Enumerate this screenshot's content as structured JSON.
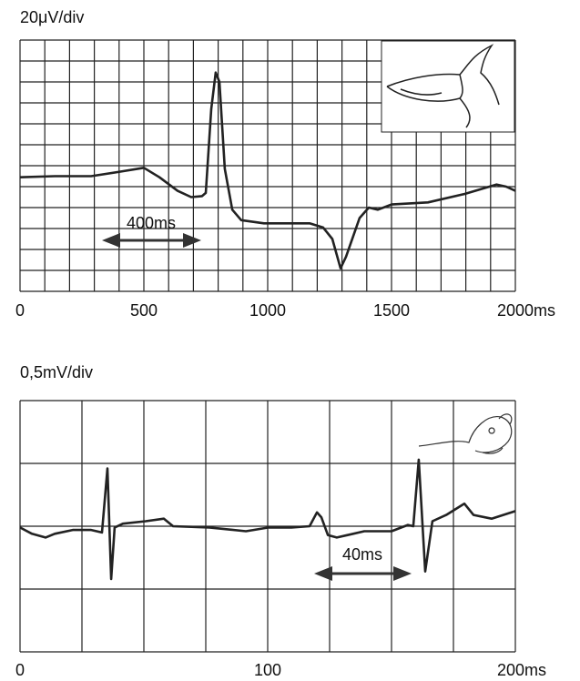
{
  "chart_data": [
    {
      "type": "line",
      "y_label": "20μV/div",
      "annotation": "400ms",
      "color": "#222222",
      "x": [
        0,
        140,
        287,
        397,
        500,
        563,
        636,
        691,
        735,
        750,
        772,
        790,
        805,
        827,
        857,
        893,
        985,
        1169,
        1224,
        1261,
        1294,
        1316,
        1371,
        1408,
        1445,
        1500,
        1647,
        1794,
        1923,
        1963,
        2000
      ],
      "values": [
        109,
        110,
        110,
        114,
        118,
        109,
        96,
        90,
        91,
        94,
        174,
        209,
        200,
        117,
        78,
        68,
        65,
        65,
        61,
        50,
        22,
        33,
        70,
        80,
        78,
        83,
        85,
        93,
        102,
        100,
        96
      ],
      "xlim": [
        0,
        2000
      ],
      "ylim": [
        0,
        240
      ],
      "xticks": [
        0,
        500,
        1000,
        1500,
        {
          "value": 2000,
          "label": "2000ms"
        }
      ],
      "grid": true,
      "x_grid_step": 100,
      "y_grid_step": 20
    },
    {
      "type": "line",
      "y_label": "0,5mV/div",
      "annotation": "40ms",
      "color": "#222222",
      "x": [
        0,
        4.8,
        10.3,
        14.0,
        21.3,
        28.7,
        33.1,
        35.3,
        36.8,
        38.2,
        41.5,
        50.7,
        58.1,
        61.8,
        76.5,
        91.2,
        100.4,
        109.6,
        116.9,
        119.9,
        121.7,
        124.3,
        127.9,
        139.0,
        150.0,
        156.6,
        158.8,
        161.0,
        163.6,
        166.5,
        172.1,
        179.4,
        183.1,
        190.4,
        200
      ],
      "values": [
        -0.01,
        -0.06,
        -0.09,
        -0.06,
        -0.03,
        -0.03,
        -0.05,
        0.46,
        -0.42,
        -0.01,
        0.02,
        0.04,
        0.06,
        0,
        -0.01,
        -0.04,
        -0.01,
        -0.01,
        0,
        0.11,
        0.07,
        -0.07,
        -0.09,
        -0.04,
        -0.04,
        0.01,
        0,
        0.53,
        -0.36,
        0.04,
        0.09,
        0.18,
        0.09,
        0.06,
        0.12
      ],
      "xlim": [
        0,
        200
      ],
      "ylim": [
        -1,
        1
      ],
      "xticks": [
        0,
        100,
        {
          "value": 200,
          "label": "200ms"
        }
      ],
      "grid": true,
      "x_grid_step": 25,
      "y_grid_step": 0.5
    }
  ]
}
